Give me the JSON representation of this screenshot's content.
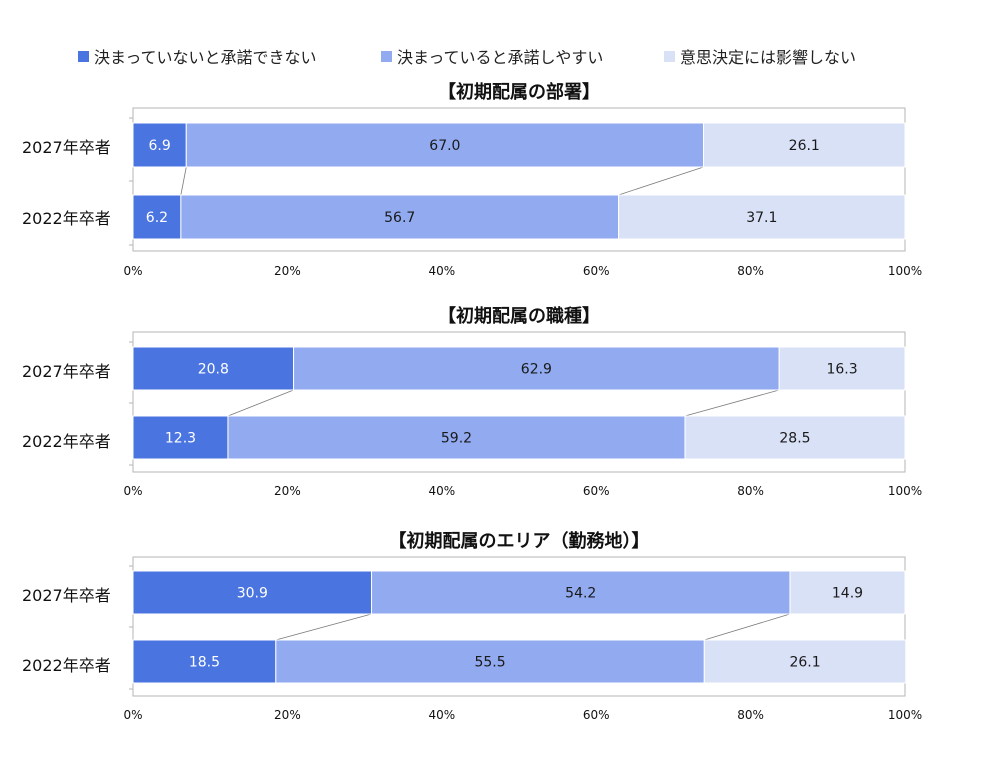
{
  "legend": [
    {
      "label": "決まっていないと承諾できない",
      "color": "#4a74e0"
    },
    {
      "label": "決まっていると承諾しやすい",
      "color": "#91aaf0"
    },
    {
      "label": "意思決定には影響しない",
      "color": "#d9e1f7"
    }
  ],
  "chart_data": [
    {
      "type": "bar",
      "orientation": "horizontal",
      "stacked": "percent",
      "title": "【初期配属の部署】",
      "categories": [
        "2027年卒者",
        "2022年卒者"
      ],
      "series": [
        {
          "name": "決まっていないと承諾できない",
          "values": [
            6.9,
            6.2
          ]
        },
        {
          "name": "決まっていると承諾しやすい",
          "values": [
            67.0,
            56.7
          ]
        },
        {
          "name": "意思決定には影響しない",
          "values": [
            26.1,
            37.1
          ]
        }
      ],
      "xlim": [
        0,
        100
      ],
      "xticks": [
        "0%",
        "20%",
        "40%",
        "60%",
        "80%",
        "100%"
      ]
    },
    {
      "type": "bar",
      "orientation": "horizontal",
      "stacked": "percent",
      "title": "【初期配属の職種】",
      "categories": [
        "2027年卒者",
        "2022年卒者"
      ],
      "series": [
        {
          "name": "決まっていないと承諾できない",
          "values": [
            20.8,
            12.3
          ]
        },
        {
          "name": "決まっていると承諾しやすい",
          "values": [
            62.9,
            59.2
          ]
        },
        {
          "name": "意思決定には影響しない",
          "values": [
            16.3,
            28.5
          ]
        }
      ],
      "xlim": [
        0,
        100
      ],
      "xticks": [
        "0%",
        "20%",
        "40%",
        "60%",
        "80%",
        "100%"
      ]
    },
    {
      "type": "bar",
      "orientation": "horizontal",
      "stacked": "percent",
      "title": "【初期配属のエリア（勤務地）】",
      "categories": [
        "2027年卒者",
        "2022年卒者"
      ],
      "series": [
        {
          "name": "決まっていないと承諾できない",
          "values": [
            30.9,
            18.5
          ]
        },
        {
          "name": "決まっていると承諾しやすい",
          "values": [
            54.2,
            55.5
          ]
        },
        {
          "name": "意思決定には影響しない",
          "values": [
            14.9,
            26.1
          ]
        }
      ],
      "xlim": [
        0,
        100
      ],
      "xticks": [
        "0%",
        "20%",
        "40%",
        "60%",
        "80%",
        "100%"
      ]
    }
  ]
}
